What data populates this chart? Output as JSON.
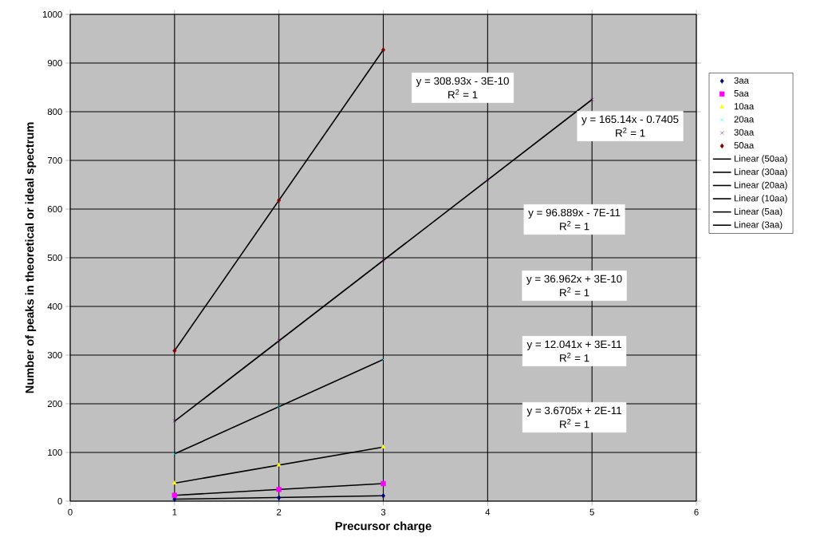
{
  "chart_data": {
    "type": "scatter",
    "xlabel": "Precursor charge",
    "ylabel": "Number of peaks in theoretical or ideal spectrum",
    "xlim": [
      0,
      6
    ],
    "xticks": [
      0,
      1,
      2,
      3,
      4,
      5,
      6
    ],
    "ylim": [
      0,
      1000
    ],
    "yticks": [
      0,
      100,
      200,
      300,
      400,
      500,
      600,
      700,
      800,
      900,
      1000
    ],
    "grid": true,
    "legend": "right",
    "series": [
      {
        "name": "3aa",
        "marker": "diamond",
        "color": "#000080",
        "x": [
          1,
          2,
          3
        ],
        "values": [
          4,
          7,
          11
        ]
      },
      {
        "name": "5aa",
        "marker": "square",
        "color": "#ff00ff",
        "x": [
          1,
          2,
          3
        ],
        "values": [
          12,
          24,
          36
        ]
      },
      {
        "name": "10aa",
        "marker": "triangle",
        "color": "#ffff00",
        "x": [
          1,
          2,
          3
        ],
        "values": [
          37,
          74,
          111
        ]
      },
      {
        "name": "20aa",
        "marker": "cross",
        "color": "#00ffff",
        "x": [
          1,
          2,
          3
        ],
        "values": [
          97,
          194,
          291
        ]
      },
      {
        "name": "30aa",
        "marker": "cross",
        "color": "#800080",
        "x": [
          1,
          2,
          3,
          4,
          5
        ],
        "values": [
          165,
          330,
          495,
          660,
          825
        ]
      },
      {
        "name": "50aa",
        "marker": "diamond",
        "color": "#800000",
        "x": [
          1,
          2,
          3
        ],
        "values": [
          309,
          618,
          927
        ]
      },
      {
        "name": "Linear (50aa)",
        "type": "line",
        "marker": "none",
        "color": "#000000",
        "x": [
          1,
          3
        ],
        "values": [
          309,
          927
        ]
      },
      {
        "name": "Linear (30aa)",
        "type": "line",
        "marker": "none",
        "color": "#000000",
        "x": [
          1,
          5
        ],
        "values": [
          164,
          825
        ]
      },
      {
        "name": "Linear (20aa)",
        "type": "line",
        "marker": "none",
        "color": "#000000",
        "x": [
          1,
          3
        ],
        "values": [
          97,
          291
        ]
      },
      {
        "name": "Linear (10aa)",
        "type": "line",
        "marker": "none",
        "color": "#000000",
        "x": [
          1,
          3
        ],
        "values": [
          37,
          111
        ]
      },
      {
        "name": "Linear (5aa)",
        "type": "line",
        "marker": "none",
        "color": "#000000",
        "x": [
          1,
          3
        ],
        "values": [
          12,
          36
        ]
      },
      {
        "name": "Linear (3aa)",
        "type": "line",
        "marker": "none",
        "color": "#000000",
        "x": [
          1,
          3
        ],
        "values": [
          4,
          11
        ]
      }
    ],
    "annotations": [
      "y = 308.93x - 3E-10",
      "R$^{2}$ = 1",
      "y = 165.14x - 0.7405",
      "R$^{2}$ = 1",
      "y = 96.889x - 7E-11",
      "R$^{2}$ = 1",
      "y = 36.962x + 3E-10",
      "R$^{2}$ = 1",
      "y = 12.041x + 3E-11",
      "R$^{2}$ = 1",
      "y = 3.6705x + 2E-11",
      "R$^{2}$ = 1"
    ]
  }
}
